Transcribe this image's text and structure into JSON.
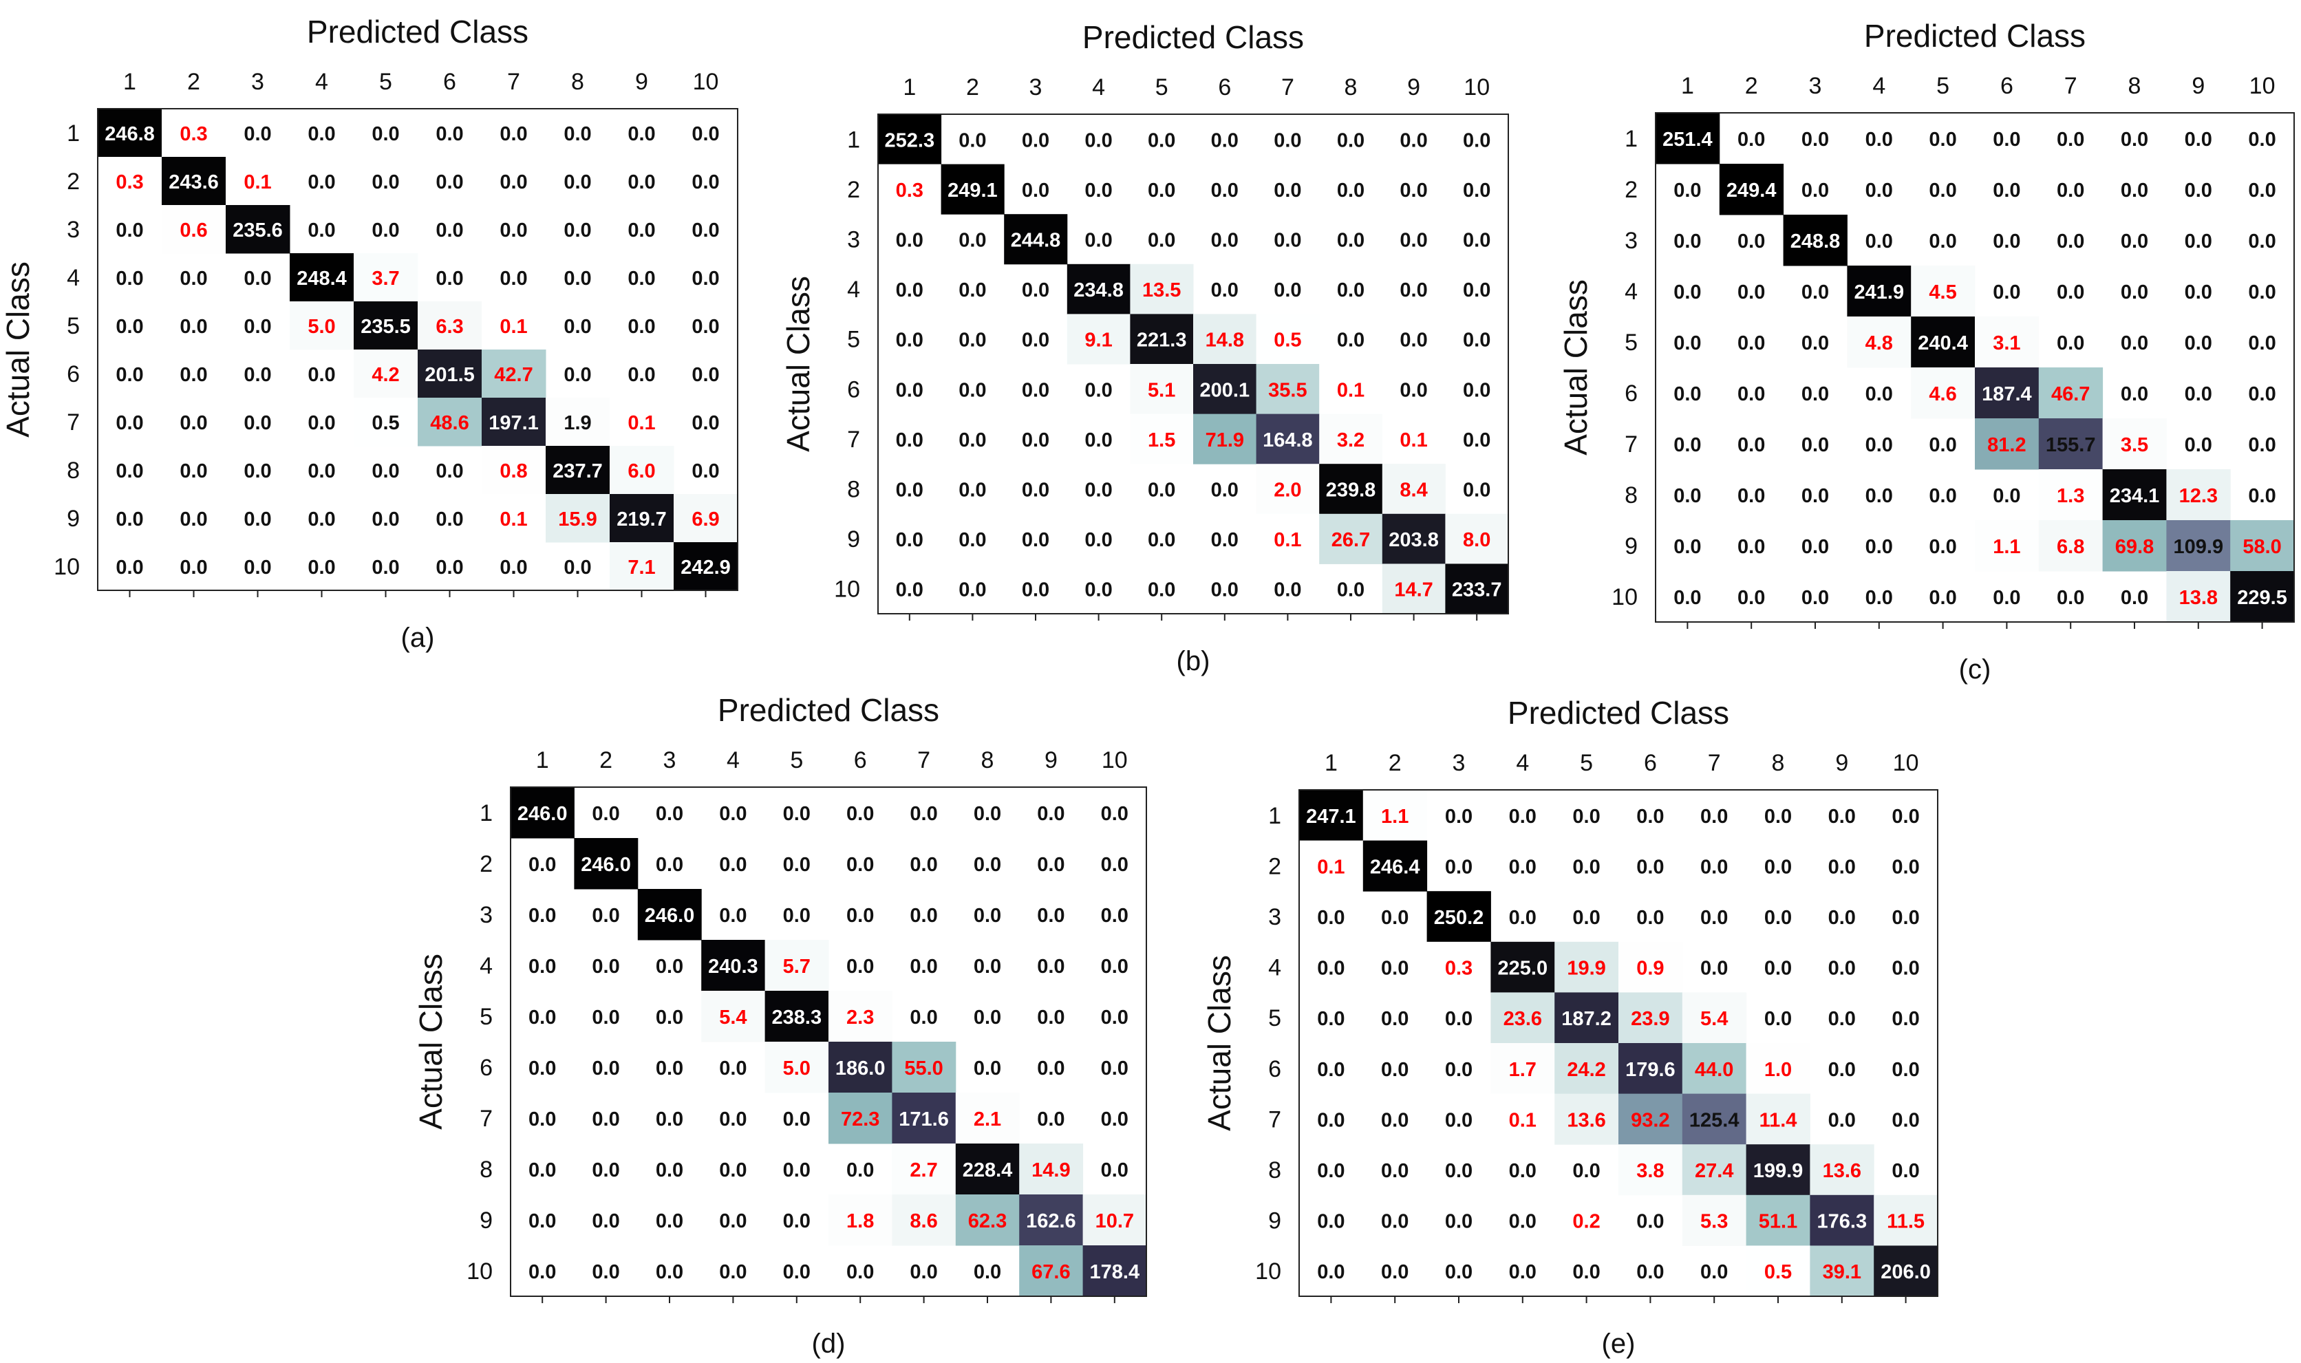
{
  "figure": {
    "xlabel": "Predicted Class",
    "ylabel": "Actual Class",
    "offdiag_color": "#ff0000",
    "normal_text_color": "#111111",
    "light_text_color": "#ffffff"
  },
  "chart_data": [
    {
      "type": "heatmap",
      "panel": "(a)",
      "title": "Predicted Class",
      "xlabel": "Predicted Class",
      "ylabel": "Actual Class",
      "x_categories": [
        "1",
        "2",
        "3",
        "4",
        "5",
        "6",
        "7",
        "8",
        "9",
        "10"
      ],
      "y_categories": [
        "1",
        "2",
        "3",
        "4",
        "5",
        "6",
        "7",
        "8",
        "9",
        "10"
      ],
      "values": [
        [
          246.8,
          0.3,
          0.0,
          0.0,
          0.0,
          0.0,
          0.0,
          0.0,
          0.0,
          0.0
        ],
        [
          0.3,
          243.6,
          0.1,
          0.0,
          0.0,
          0.0,
          0.0,
          0.0,
          0.0,
          0.0
        ],
        [
          0.0,
          0.6,
          235.6,
          0.0,
          0.0,
          0.0,
          0.0,
          0.0,
          0.0,
          0.0
        ],
        [
          0.0,
          0.0,
          0.0,
          248.4,
          3.7,
          0.0,
          0.0,
          0.0,
          0.0,
          0.0
        ],
        [
          0.0,
          0.0,
          0.0,
          5.0,
          235.5,
          6.3,
          0.1,
          0.0,
          0.0,
          0.0
        ],
        [
          0.0,
          0.0,
          0.0,
          0.0,
          4.2,
          201.5,
          42.7,
          0.0,
          0.0,
          0.0
        ],
        [
          0.0,
          0.0,
          0.0,
          0.0,
          0.5,
          48.6,
          197.1,
          1.9,
          0.1,
          0.0
        ],
        [
          0.0,
          0.0,
          0.0,
          0.0,
          0.0,
          0.0,
          0.8,
          237.7,
          6.0,
          0.0
        ],
        [
          0.0,
          0.0,
          0.0,
          0.0,
          0.0,
          0.0,
          0.1,
          15.9,
          219.7,
          6.9
        ],
        [
          0.0,
          0.0,
          0.0,
          0.0,
          0.0,
          0.0,
          0.0,
          0.0,
          7.1,
          242.9
        ]
      ]
    },
    {
      "type": "heatmap",
      "panel": "(b)",
      "title": "Predicted Class",
      "xlabel": "Predicted Class",
      "ylabel": "Actual Class",
      "x_categories": [
        "1",
        "2",
        "3",
        "4",
        "5",
        "6",
        "7",
        "8",
        "9",
        "10"
      ],
      "y_categories": [
        "1",
        "2",
        "3",
        "4",
        "5",
        "6",
        "7",
        "8",
        "9",
        "10"
      ],
      "values": [
        [
          252.3,
          0.0,
          0.0,
          0.0,
          0.0,
          0.0,
          0.0,
          0.0,
          0.0,
          0.0
        ],
        [
          0.3,
          249.1,
          0.0,
          0.0,
          0.0,
          0.0,
          0.0,
          0.0,
          0.0,
          0.0
        ],
        [
          0.0,
          0.0,
          244.8,
          0.0,
          0.0,
          0.0,
          0.0,
          0.0,
          0.0,
          0.0
        ],
        [
          0.0,
          0.0,
          0.0,
          234.8,
          13.5,
          0.0,
          0.0,
          0.0,
          0.0,
          0.0
        ],
        [
          0.0,
          0.0,
          0.0,
          9.1,
          221.3,
          14.8,
          0.5,
          0.0,
          0.0,
          0.0
        ],
        [
          0.0,
          0.0,
          0.0,
          0.0,
          5.1,
          200.1,
          35.5,
          0.1,
          0.0,
          0.0
        ],
        [
          0.0,
          0.0,
          0.0,
          0.0,
          1.5,
          71.9,
          164.8,
          3.2,
          0.1,
          0.0
        ],
        [
          0.0,
          0.0,
          0.0,
          0.0,
          0.0,
          0.0,
          2.0,
          239.8,
          8.4,
          0.0
        ],
        [
          0.0,
          0.0,
          0.0,
          0.0,
          0.0,
          0.0,
          0.1,
          26.7,
          203.8,
          8.0
        ],
        [
          0.0,
          0.0,
          0.0,
          0.0,
          0.0,
          0.0,
          0.0,
          0.0,
          14.7,
          233.7
        ]
      ]
    },
    {
      "type": "heatmap",
      "panel": "(c)",
      "title": "Predicted Class",
      "xlabel": "Predicted Class",
      "ylabel": "Actual Class",
      "x_categories": [
        "1",
        "2",
        "3",
        "4",
        "5",
        "6",
        "7",
        "8",
        "9",
        "10"
      ],
      "y_categories": [
        "1",
        "2",
        "3",
        "4",
        "5",
        "6",
        "7",
        "8",
        "9",
        "10"
      ],
      "values": [
        [
          251.4,
          0.0,
          0.0,
          0.0,
          0.0,
          0.0,
          0.0,
          0.0,
          0.0,
          0.0
        ],
        [
          0.0,
          249.4,
          0.0,
          0.0,
          0.0,
          0.0,
          0.0,
          0.0,
          0.0,
          0.0
        ],
        [
          0.0,
          0.0,
          248.8,
          0.0,
          0.0,
          0.0,
          0.0,
          0.0,
          0.0,
          0.0
        ],
        [
          0.0,
          0.0,
          0.0,
          241.9,
          4.5,
          0.0,
          0.0,
          0.0,
          0.0,
          0.0
        ],
        [
          0.0,
          0.0,
          0.0,
          4.8,
          240.4,
          3.1,
          0.0,
          0.0,
          0.0,
          0.0
        ],
        [
          0.0,
          0.0,
          0.0,
          0.0,
          4.6,
          187.4,
          46.7,
          0.0,
          0.0,
          0.0
        ],
        [
          0.0,
          0.0,
          0.0,
          0.0,
          0.0,
          81.2,
          155.7,
          3.5,
          0.0,
          0.0
        ],
        [
          0.0,
          0.0,
          0.0,
          0.0,
          0.0,
          0.0,
          1.3,
          234.1,
          12.3,
          0.0
        ],
        [
          0.0,
          0.0,
          0.0,
          0.0,
          0.0,
          1.1,
          6.8,
          69.8,
          109.9,
          58.0
        ],
        [
          0.0,
          0.0,
          0.0,
          0.0,
          0.0,
          0.0,
          0.0,
          0.0,
          13.8,
          229.5
        ]
      ]
    },
    {
      "type": "heatmap",
      "panel": "(d)",
      "title": "Predicted Class",
      "xlabel": "Predicted Class",
      "ylabel": "Actual Class",
      "x_categories": [
        "1",
        "2",
        "3",
        "4",
        "5",
        "6",
        "7",
        "8",
        "9",
        "10"
      ],
      "y_categories": [
        "1",
        "2",
        "3",
        "4",
        "5",
        "6",
        "7",
        "8",
        "9",
        "10"
      ],
      "values": [
        [
          246.0,
          0.0,
          0.0,
          0.0,
          0.0,
          0.0,
          0.0,
          0.0,
          0.0,
          0.0
        ],
        [
          0.0,
          246.0,
          0.0,
          0.0,
          0.0,
          0.0,
          0.0,
          0.0,
          0.0,
          0.0
        ],
        [
          0.0,
          0.0,
          246.0,
          0.0,
          0.0,
          0.0,
          0.0,
          0.0,
          0.0,
          0.0
        ],
        [
          0.0,
          0.0,
          0.0,
          240.3,
          5.7,
          0.0,
          0.0,
          0.0,
          0.0,
          0.0
        ],
        [
          0.0,
          0.0,
          0.0,
          5.4,
          238.3,
          2.3,
          0.0,
          0.0,
          0.0,
          0.0
        ],
        [
          0.0,
          0.0,
          0.0,
          0.0,
          5.0,
          186.0,
          55.0,
          0.0,
          0.0,
          0.0
        ],
        [
          0.0,
          0.0,
          0.0,
          0.0,
          0.0,
          72.3,
          171.6,
          2.1,
          0.0,
          0.0
        ],
        [
          0.0,
          0.0,
          0.0,
          0.0,
          0.0,
          0.0,
          2.7,
          228.4,
          14.9,
          0.0
        ],
        [
          0.0,
          0.0,
          0.0,
          0.0,
          0.0,
          1.8,
          8.6,
          62.3,
          162.6,
          10.7
        ],
        [
          0.0,
          0.0,
          0.0,
          0.0,
          0.0,
          0.0,
          0.0,
          0.0,
          67.6,
          178.4
        ]
      ]
    },
    {
      "type": "heatmap",
      "panel": "(e)",
      "title": "Predicted Class",
      "xlabel": "Predicted Class",
      "ylabel": "Actual Class",
      "x_categories": [
        "1",
        "2",
        "3",
        "4",
        "5",
        "6",
        "7",
        "8",
        "9",
        "10"
      ],
      "y_categories": [
        "1",
        "2",
        "3",
        "4",
        "5",
        "6",
        "7",
        "8",
        "9",
        "10"
      ],
      "values": [
        [
          247.1,
          1.1,
          0.0,
          0.0,
          0.0,
          0.0,
          0.0,
          0.0,
          0.0,
          0.0
        ],
        [
          0.1,
          246.4,
          0.0,
          0.0,
          0.0,
          0.0,
          0.0,
          0.0,
          0.0,
          0.0
        ],
        [
          0.0,
          0.0,
          250.2,
          0.0,
          0.0,
          0.0,
          0.0,
          0.0,
          0.0,
          0.0
        ],
        [
          0.0,
          0.0,
          0.3,
          225.0,
          19.9,
          0.9,
          0.0,
          0.0,
          0.0,
          0.0
        ],
        [
          0.0,
          0.0,
          0.0,
          23.6,
          187.2,
          23.9,
          5.4,
          0.0,
          0.0,
          0.0
        ],
        [
          0.0,
          0.0,
          0.0,
          1.7,
          24.2,
          179.6,
          44.0,
          1.0,
          0.0,
          0.0
        ],
        [
          0.0,
          0.0,
          0.0,
          0.1,
          13.6,
          93.2,
          125.4,
          11.4,
          0.0,
          0.0
        ],
        [
          0.0,
          0.0,
          0.0,
          0.0,
          0.0,
          3.8,
          27.4,
          199.9,
          13.6,
          0.0
        ],
        [
          0.0,
          0.0,
          0.0,
          0.0,
          0.2,
          0.0,
          5.3,
          51.1,
          176.3,
          11.5
        ],
        [
          0.0,
          0.0,
          0.0,
          0.0,
          0.0,
          0.0,
          0.0,
          0.5,
          39.1,
          206.0
        ]
      ]
    }
  ]
}
